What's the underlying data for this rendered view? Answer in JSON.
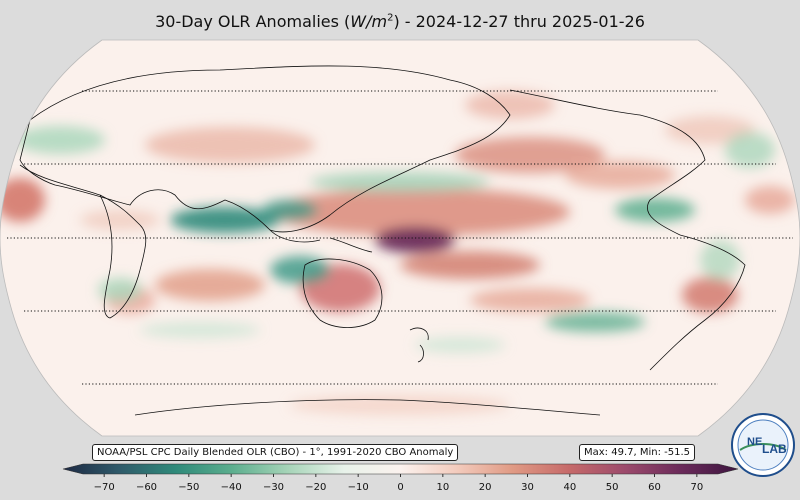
{
  "title": {
    "prefix": "30-Day OLR Anomalies (",
    "unit_main": "W/m",
    "unit_exp": "2",
    "suffix": ") - 2024-12-27 thru 2025-01-26"
  },
  "source_label": "NOAA/PSL CPC Daily Blended OLR (CBO) - 1°, 1991-2020 CBO Anomaly",
  "stats": {
    "max": 49.7,
    "min": -51.5,
    "text": "Max: 49.7,  Min: -51.5"
  },
  "colorbar": {
    "ticks": [
      -70,
      -60,
      -50,
      -40,
      -30,
      -20,
      -10,
      0,
      10,
      20,
      30,
      40,
      50,
      60,
      70
    ],
    "vmin": -75,
    "vmax": 75,
    "colors": [
      "#1e2a44",
      "#2f5a6a",
      "#2f8a7a",
      "#5cae8e",
      "#a6d4b8",
      "#e8f2ea",
      "#fbf2ee",
      "#f3cbbd",
      "#e09a84",
      "#c66a6a",
      "#9c4a6c",
      "#6a2a5a",
      "#3e1640"
    ]
  },
  "logo": {
    "name": "noaa-physical-sciences-lab-logo",
    "text_a": "NE",
    "text_b": "LAB"
  },
  "map": {
    "projection": "Robinson, Pacific-centered",
    "gridlines_lat": [
      -60,
      -30,
      0,
      30,
      60
    ]
  }
}
